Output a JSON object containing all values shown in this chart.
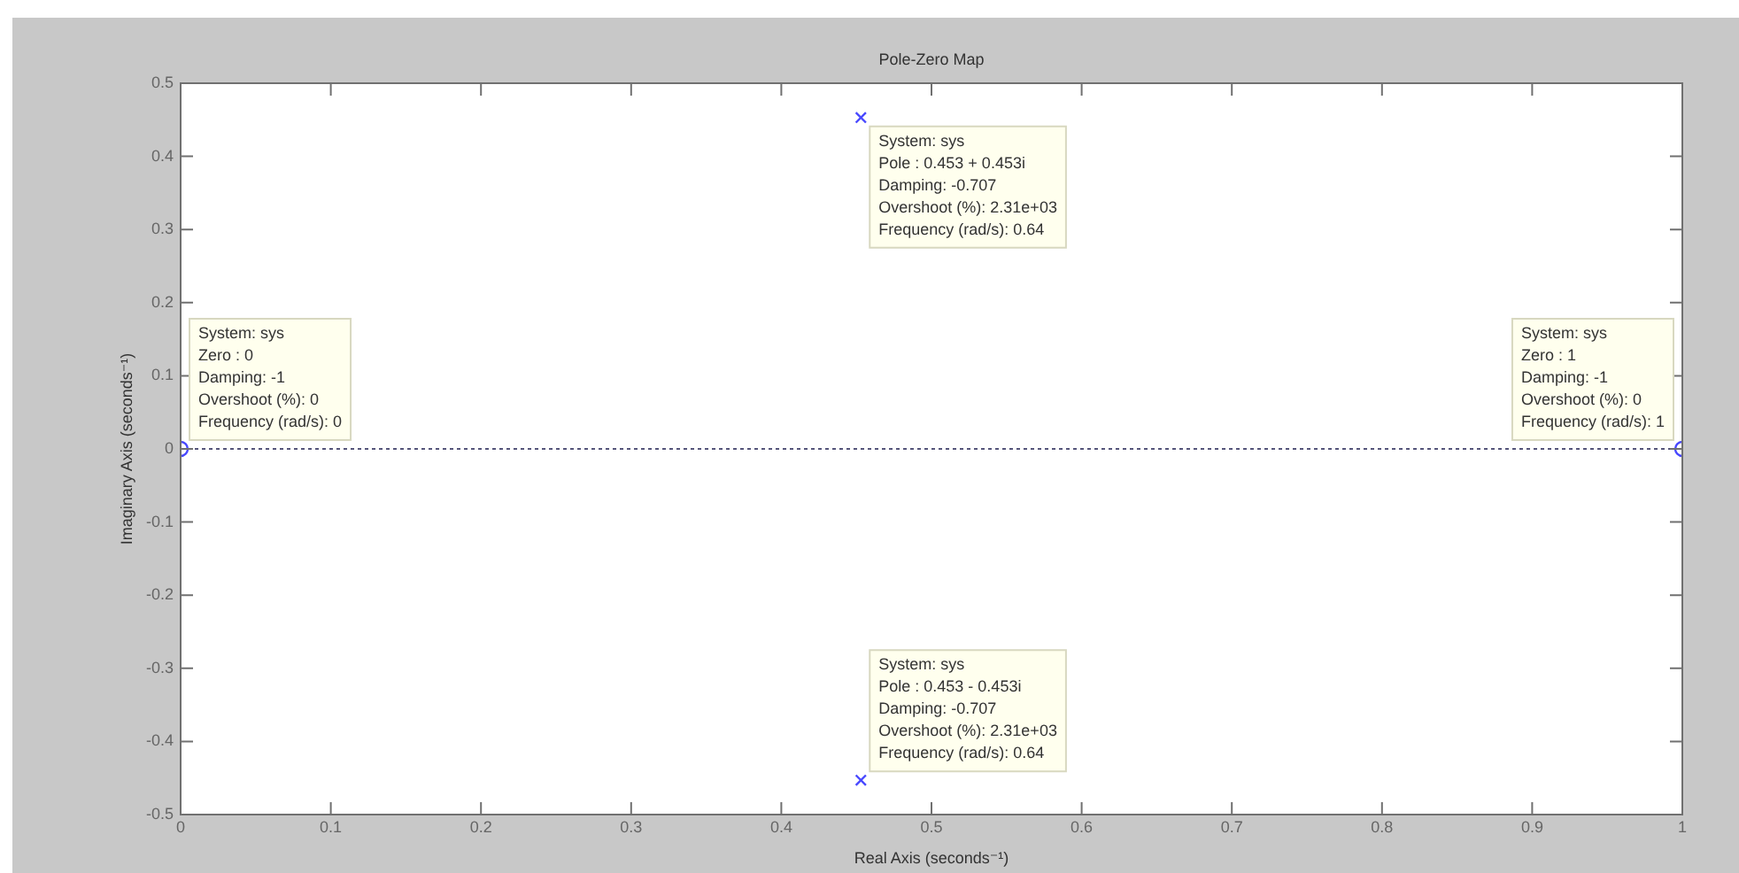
{
  "chart_data": {
    "type": "scatter",
    "title": "Pole-Zero Map",
    "xlabel": "Real Axis (seconds⁻¹)",
    "ylabel": "Imaginary Axis (seconds⁻¹)",
    "series": [
      {
        "marker": "cross",
        "color": "#4848ff",
        "x": [
          0.453,
          0.453
        ],
        "values": [
          0.453,
          -0.453
        ]
      },
      {
        "marker": "circle",
        "color": "#4848ff",
        "x": [
          0,
          1
        ],
        "values": [
          0,
          0
        ]
      }
    ],
    "xlim": [
      0,
      1
    ],
    "ylim": [
      -0.5,
      0.5
    ],
    "xticks": [
      0,
      0.1,
      0.2,
      0.3,
      0.4,
      0.5,
      0.6,
      0.7,
      0.8,
      0.9,
      1
    ],
    "yticks": [
      -0.5,
      -0.4,
      -0.3,
      -0.2,
      -0.1,
      0,
      0.1,
      0.2,
      0.3,
      0.4,
      0.5
    ],
    "ref_lines": [
      {
        "axis": "y",
        "value": 0,
        "color": "#55557a",
        "line_style": "dotted"
      }
    ],
    "annotations": [
      {
        "text": "System: sys\nPole : 0.453 + 0.453i\nDamping: -0.707\nOvershoot (%): 2.31e+03\nFrequency (rad/s): 0.64",
        "x": 0.453,
        "y": 0.453
      },
      {
        "text": "System: sys\nZero : 0\nDamping: -1\nOvershoot (%): 0\nFrequency (rad/s): 0",
        "x": 0,
        "y": 0
      },
      {
        "text": "System: sys\nZero : 1\nDamping: -1\nOvershoot (%): 0\nFrequency (rad/s): 1",
        "x": 1,
        "y": 0
      },
      {
        "text": "System: sys\nPole : 0.453 - 0.453i\nDamping: -0.707\nOvershoot (%): 2.31e+03\nFrequency (rad/s): 0.64",
        "x": 0.453,
        "y": -0.453
      }
    ]
  }
}
